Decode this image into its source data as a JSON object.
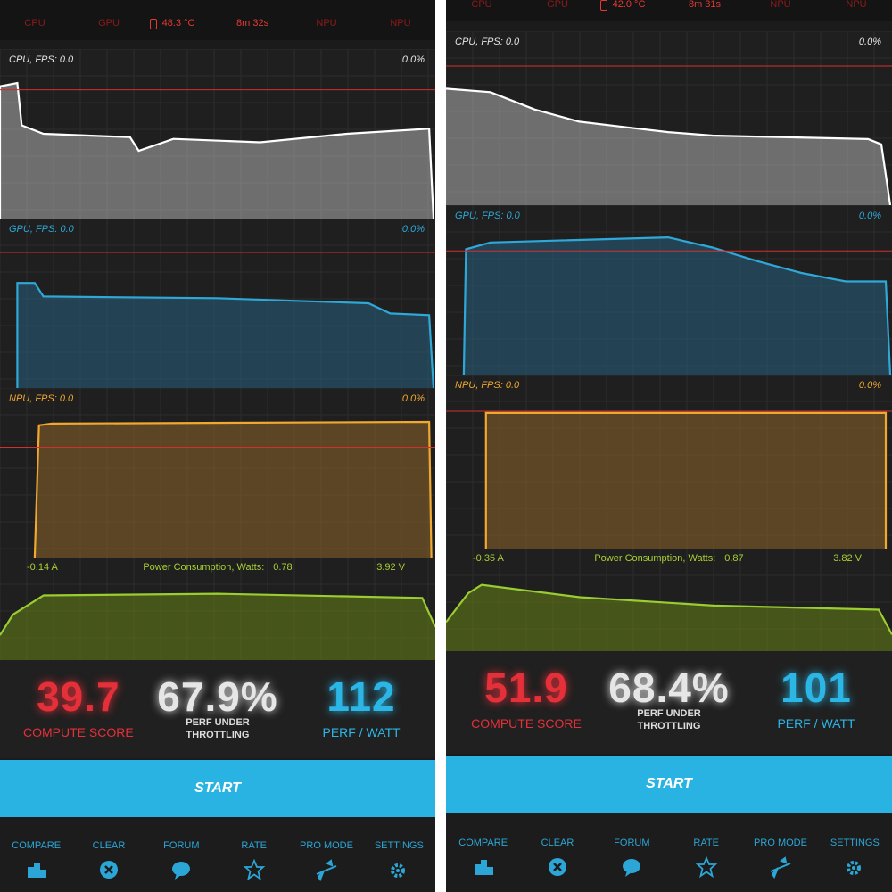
{
  "screens": [
    {
      "status": [
        "CPU",
        "GPU",
        "48.3 °C",
        "8m 32s",
        "NPU",
        "NPU"
      ],
      "charts": [
        {
          "label": "CPU, FPS:  0.0",
          "percent": "0.0%"
        },
        {
          "label": "GPU, FPS:  0.0",
          "percent": "0.0%"
        },
        {
          "label": "NPU, FPS:  0.0",
          "percent": "0.0%"
        }
      ],
      "power": {
        "current": "-0.14 A",
        "title": "Power Consumption, Watts:",
        "watts": "0.78",
        "voltage": "3.92 V"
      },
      "scores": [
        {
          "value": "39.7",
          "label": "COMPUTE SCORE"
        },
        {
          "value": "67.9%",
          "label": "PERF UNDER THROTTLING"
        },
        {
          "value": "112",
          "label": "PERF / WATT"
        }
      ],
      "button": "START",
      "nav": [
        "COMPARE",
        "CLEAR",
        "FORUM",
        "RATE",
        "PRO MODE",
        "SETTINGS"
      ]
    },
    {
      "status": [
        "CPU",
        "GPU",
        "42.0 °C",
        "8m 31s",
        "NPU",
        "NPU"
      ],
      "charts": [
        {
          "label": "CPU, FPS:  0.0",
          "percent": "0.0%"
        },
        {
          "label": "GPU, FPS:  0.0",
          "percent": "0.0%"
        },
        {
          "label": "NPU, FPS:  0.0",
          "percent": "0.0%"
        }
      ],
      "power": {
        "current": "-0.35 A",
        "title": "Power Consumption, Watts:",
        "watts": "0.87",
        "voltage": "3.82 V"
      },
      "scores": [
        {
          "value": "51.9",
          "label": "COMPUTE SCORE"
        },
        {
          "value": "68.4%",
          "label": "PERF UNDER THROTTLING"
        },
        {
          "value": "101",
          "label": "PERF / WATT"
        }
      ],
      "button": "START",
      "nav": [
        "COMPARE",
        "CLEAR",
        "FORUM",
        "RATE",
        "PRO MODE",
        "SETTINGS"
      ]
    }
  ]
}
